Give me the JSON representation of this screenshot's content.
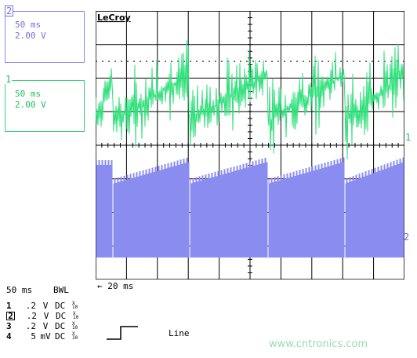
{
  "trace_boxes": {
    "trace2": {
      "number": "2",
      "timebase": "50 ms",
      "volts": "2.00 V"
    },
    "trace1": {
      "number": "1",
      "timebase": "50 ms",
      "volts": "2.00 V"
    }
  },
  "screen": {
    "brand": "LeCroy",
    "marker1": "1",
    "marker2": "2",
    "time_per_div": "← 20 ms"
  },
  "acquisition": {
    "timebase": "50 ms",
    "bwl": "BWL"
  },
  "channels": [
    {
      "num": "1",
      "value": ".2",
      "unit": "V",
      "coupling": "DC",
      "bw": [
        "X",
        "10"
      ]
    },
    {
      "num": "2",
      "value": ".2",
      "unit": "V",
      "coupling": "DC",
      "bw": [
        "X",
        "10"
      ]
    },
    {
      "num": "3",
      "value": ".2",
      "unit": "V",
      "coupling": "DC",
      "bw": [
        "X",
        "10"
      ]
    },
    {
      "num": "4",
      "value": "5",
      "unit": "mV",
      "coupling": "DC",
      "bw": [
        "X",
        "10"
      ]
    }
  ],
  "trigger": {
    "source": "Line"
  },
  "watermark": "www.cntronics.com",
  "colors": {
    "ch1": "#2ee07a",
    "ch2": "#8a8cf0",
    "grid": "#000000"
  }
}
